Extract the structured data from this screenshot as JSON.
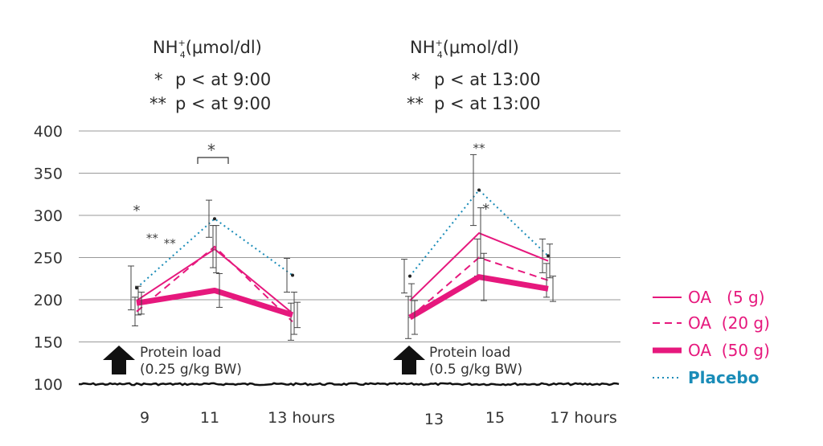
{
  "chart_data": {
    "type": "line",
    "y_ticks": [
      100,
      150,
      200,
      250,
      300,
      350,
      400
    ],
    "ylim": [
      100,
      400
    ],
    "colors": {
      "oa": "#e6187d",
      "placebo": "#1a8cb8",
      "axis": "#333333",
      "grid": "#999999"
    },
    "legend": [
      {
        "label": "OA   (5 g)",
        "style": "solid",
        "color": "#e6187d"
      },
      {
        "label": "OA  (20 g)",
        "style": "dashed",
        "color": "#e6187d"
      },
      {
        "label": "OA  (50 g)",
        "style": "thick",
        "color": "#e6187d"
      },
      {
        "label": "Placebo",
        "style": "dotted",
        "color": "#1a8cb8"
      }
    ],
    "panels": [
      {
        "title_main": "NH",
        "title_sup": "+",
        "title_sub": "4",
        "title_unit": "(μmol/dl)",
        "note1_mark": "*",
        "note1_text": "p < at 9:00",
        "note2_mark": "**",
        "note2_text": "p < at 9:00",
        "x_labels": [
          "9",
          "11",
          "13 hours"
        ],
        "annotation_line1": "Protein load",
        "annotation_line2": "(0.25 g/kg BW)",
        "bracket_mark": "*",
        "series": [
          {
            "name": "Placebo",
            "x": [
              9,
              11,
              13
            ],
            "y": [
              214,
              296,
              229
            ],
            "err": [
              26,
              22,
              20
            ],
            "style": "dotted"
          },
          {
            "name": "OA (5 g)",
            "x": [
              9,
              11,
              13
            ],
            "y": [
              199,
              260,
              184
            ],
            "err": [
              17,
              28,
              25
            ],
            "style": "solid"
          },
          {
            "name": "OA (20 g)",
            "x": [
              9,
              11,
              13
            ],
            "y": [
              186,
              263,
              174
            ],
            "err": [
              17,
              25,
              22
            ],
            "style": "dashed"
          },
          {
            "name": "OA (50 g)",
            "x": [
              9,
              11,
              13
            ],
            "y": [
              196,
              211,
              182
            ],
            "err": [
              13,
              20,
              15
            ],
            "style": "thick"
          }
        ],
        "point_marks": [
          {
            "x": 9.0,
            "y": 300,
            "mark": "*"
          },
          {
            "x": 9.4,
            "y": 268,
            "mark": "**"
          },
          {
            "x": 9.85,
            "y": 262,
            "mark": "**"
          }
        ]
      },
      {
        "title_main": "NH",
        "title_sup": "+",
        "title_sub": "4",
        "title_unit": "(μmol/dl)",
        "note1_mark": "*",
        "note1_text": "p < at 13:00",
        "note2_mark": "**",
        "note2_text": "p < at 13:00",
        "x_labels": [
          "13",
          "15",
          "17 hours"
        ],
        "annotation_line1": "Protein load",
        "annotation_line2": "(0.5 g/kg BW)",
        "series": [
          {
            "name": "Placebo",
            "x": [
              13,
              15,
              17
            ],
            "y": [
              228,
              330,
              252
            ],
            "err": [
              20,
              42,
              20
            ],
            "style": "dotted"
          },
          {
            "name": "OA (5 g)",
            "x": [
              13,
              15,
              17
            ],
            "y": [
              199,
              279,
              246
            ],
            "err": [
              20,
              30,
              20
            ],
            "style": "solid"
          },
          {
            "name": "OA (20 g)",
            "x": [
              13,
              15,
              17
            ],
            "y": [
              179,
              250,
              223
            ],
            "err": [
              25,
              22,
              20
            ],
            "style": "dashed"
          },
          {
            "name": "OA (50 g)",
            "x": [
              13,
              15,
              17
            ],
            "y": [
              179,
              227,
              213
            ],
            "err": [
              20,
              28,
              15
            ],
            "style": "thick"
          }
        ],
        "point_marks": [
          {
            "x": 15.0,
            "y": 375,
            "mark": "**"
          },
          {
            "x": 15.2,
            "y": 302,
            "mark": "*"
          }
        ]
      }
    ]
  }
}
